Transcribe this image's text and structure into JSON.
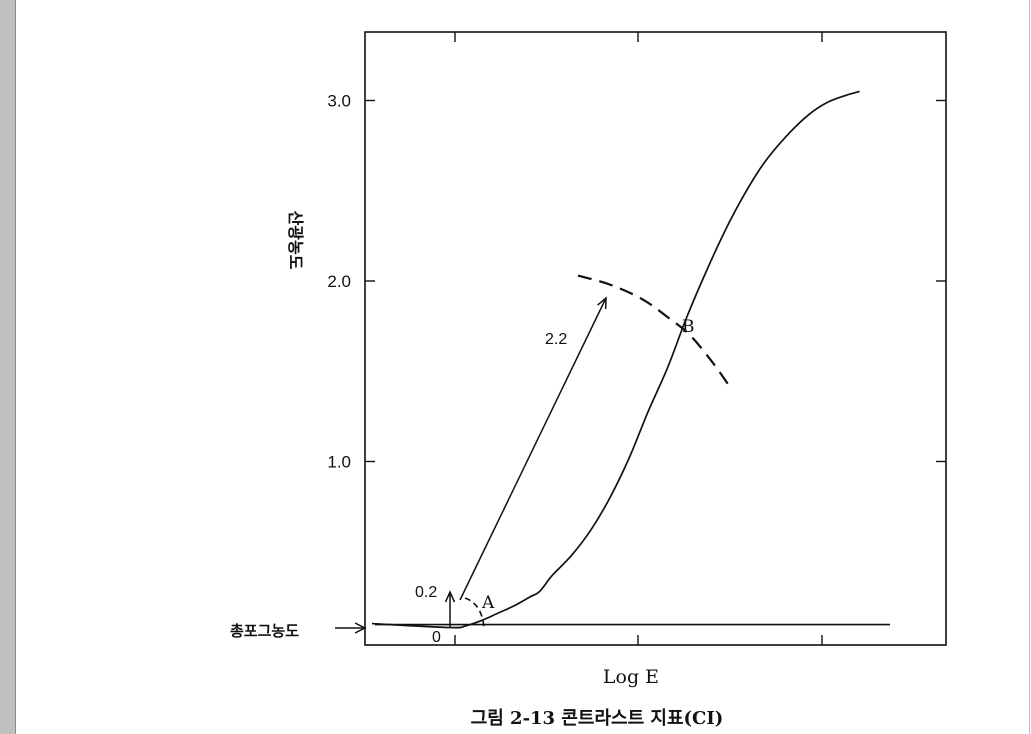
{
  "chart_data": {
    "type": "line",
    "title": "",
    "caption": "그림 2-13   콘트라스트 지표(CI)",
    "xlabel": "Log E",
    "ylabel": "산광농도",
    "y_ticks": [
      "3.0",
      "2.0",
      "1.0"
    ],
    "ylim": [
      0,
      3.3
    ],
    "grid": false,
    "base_fog_label": "총포그농도",
    "base_fog_density": 0.08,
    "series": [
      {
        "x": [
          0.0,
          0.05,
          0.1,
          0.15,
          0.2,
          0.25,
          0.28,
          0.32,
          0.38,
          0.44,
          0.5,
          0.56,
          0.62,
          0.68,
          0.74,
          0.8,
          0.86,
          0.92,
          0.98,
          1.05,
          1.12,
          1.18,
          1.24,
          1.28
        ],
        "y": [
          0.08,
          0.09,
          0.12,
          0.16,
          0.2,
          0.25,
          0.28,
          0.37,
          0.48,
          0.62,
          0.8,
          1.02,
          1.28,
          1.52,
          1.8,
          2.05,
          2.28,
          2.48,
          2.65,
          2.8,
          2.92,
          2.99,
          3.03,
          3.05
        ]
      }
    ],
    "dashed_arc": {
      "x": [
        0.4,
        0.5,
        0.6,
        0.68,
        0.75,
        0.82,
        0.88
      ],
      "y": [
        2.03,
        1.98,
        1.9,
        1.8,
        1.7,
        1.55,
        1.4
      ]
    },
    "annotations": {
      "point_a": "A",
      "point_b": "B",
      "value_02": "0.2",
      "value_22": "2.2",
      "origin": "0"
    }
  }
}
